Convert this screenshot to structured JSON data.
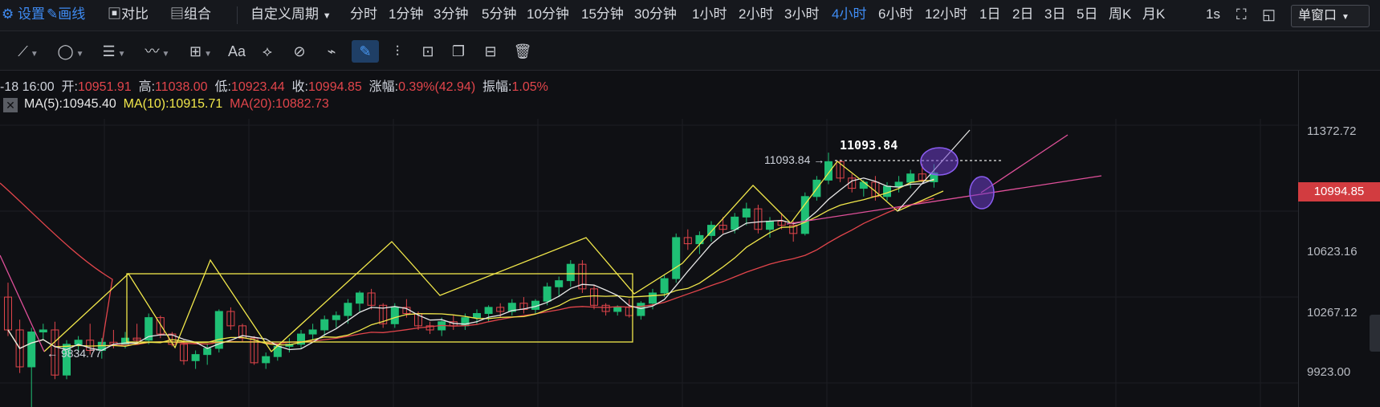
{
  "topbar": {
    "settings_label": "设置",
    "draw_label": "画线",
    "compare_label": "对比",
    "combo_label": "组合",
    "custom_period_label": "自定义周期",
    "periods": [
      "分时",
      "1分钟",
      "3分钟",
      "5分钟",
      "10分钟",
      "15分钟",
      "30分钟",
      "1小时",
      "2小时",
      "3小时",
      "4小时",
      "6小时",
      "12小时",
      "1日",
      "2日",
      "3日",
      "5日",
      "周K",
      "月K"
    ],
    "active_period": "4小时",
    "refresh_label": "1s",
    "window_mode_label": "单窗口"
  },
  "drawing_tools": [
    "line-tool-icon",
    "ellipse-tool-icon",
    "parallel-tool-icon",
    "wave-tool-icon",
    "measure-tool-icon",
    "text-tool-icon",
    "fib-tool-icon",
    "magnet-tool-icon",
    "ruler-tool-icon",
    "brush-tool-icon",
    "pattern-tool-icon",
    "lock-tool-icon",
    "copy-tool-icon",
    "hide-tool-icon",
    "delete-tool-icon"
  ],
  "text_tool_label": "Aa",
  "ohlc": {
    "time": "-18 16:00",
    "open_label": "开:",
    "open": "10951.91",
    "high_label": "高:",
    "high": "11038.00",
    "low_label": "低:",
    "low": "10923.44",
    "close_label": "收:",
    "close": "10994.85",
    "change_label": "涨幅:",
    "change": "0.39%(42.94)",
    "amplitude_label": "振幅:",
    "amplitude": "1.05%"
  },
  "ma": {
    "ma5": "MA(5):10945.40",
    "ma10": "MA(10):10915.71",
    "ma20": "MA(20):10882.73"
  },
  "colors": {
    "up": "#1fbf75",
    "down": "#e2454b",
    "ma5": "#e8e8e8",
    "ma10": "#f2e84b",
    "ma20": "#e2454b",
    "accent": "#3f8cf4"
  },
  "chart_data": {
    "type": "candlestick",
    "price_axis_ticks": [
      "11372.72",
      "10623.16",
      "10267.12",
      "9923.00"
    ],
    "current_price": "10994.85",
    "ylim": [
      9870,
      11470
    ],
    "annotations": {
      "high_marker": "11093.84",
      "high_marker_big": "11093.84",
      "low_marker": "9834.77"
    },
    "candles": [
      [
        10390,
        10460,
        10200,
        10230
      ],
      [
        10230,
        10280,
        10020,
        10050
      ],
      [
        10050,
        10240,
        9834.77,
        10220
      ],
      [
        10220,
        10260,
        10180,
        10230
      ],
      [
        10230,
        10270,
        9990,
        10010
      ],
      [
        10010,
        10180,
        9990,
        10160
      ],
      [
        10160,
        10200,
        10120,
        10180
      ],
      [
        10180,
        10260,
        10110,
        10130
      ],
      [
        10130,
        10190,
        10090,
        10170
      ],
      [
        10170,
        10230,
        10140,
        10160
      ],
      [
        10160,
        10220,
        10140,
        10190
      ],
      [
        10190,
        10260,
        10160,
        10180
      ],
      [
        10180,
        10310,
        10160,
        10290
      ],
      [
        10290,
        10300,
        10190,
        10210
      ],
      [
        10210,
        10220,
        10150,
        10160
      ],
      [
        10160,
        10180,
        10060,
        10080
      ],
      [
        10080,
        10130,
        10040,
        10110
      ],
      [
        10110,
        10160,
        10060,
        10140
      ],
      [
        10140,
        10330,
        10120,
        10320
      ],
      [
        10320,
        10340,
        10230,
        10250
      ],
      [
        10250,
        10260,
        10170,
        10190
      ],
      [
        10190,
        10200,
        10060,
        10070
      ],
      [
        10070,
        10120,
        10040,
        10100
      ],
      [
        10100,
        10160,
        10080,
        10150
      ],
      [
        10150,
        10190,
        10120,
        10160
      ],
      [
        10160,
        10230,
        10140,
        10210
      ],
      [
        10210,
        10260,
        10180,
        10230
      ],
      [
        10230,
        10300,
        10200,
        10280
      ],
      [
        10280,
        10320,
        10240,
        10300
      ],
      [
        10300,
        10380,
        10260,
        10360
      ],
      [
        10360,
        10420,
        10320,
        10410
      ],
      [
        10410,
        10430,
        10330,
        10350
      ],
      [
        10350,
        10360,
        10240,
        10260
      ],
      [
        10260,
        10360,
        10240,
        10340
      ],
      [
        10340,
        10380,
        10290,
        10310
      ],
      [
        10310,
        10320,
        10230,
        10250
      ],
      [
        10250,
        10270,
        10210,
        10230
      ],
      [
        10230,
        10290,
        10200,
        10270
      ],
      [
        10270,
        10300,
        10230,
        10250
      ],
      [
        10250,
        10310,
        10230,
        10290
      ],
      [
        10290,
        10330,
        10260,
        10310
      ],
      [
        10310,
        10350,
        10270,
        10340
      ],
      [
        10340,
        10360,
        10290,
        10320
      ],
      [
        10320,
        10380,
        10300,
        10360
      ],
      [
        10360,
        10390,
        10310,
        10330
      ],
      [
        10330,
        10380,
        10310,
        10370
      ],
      [
        10370,
        10460,
        10350,
        10440
      ],
      [
        10440,
        10490,
        10390,
        10470
      ],
      [
        10470,
        10570,
        10440,
        10550
      ],
      [
        10550,
        10570,
        10410,
        10430
      ],
      [
        10430,
        10450,
        10330,
        10350
      ],
      [
        10350,
        10360,
        10300,
        10320
      ],
      [
        10320,
        10350,
        10300,
        10340
      ],
      [
        10340,
        10380,
        10290,
        10300
      ],
      [
        10300,
        10370,
        10280,
        10360
      ],
      [
        10360,
        10430,
        10330,
        10410
      ],
      [
        10410,
        10500,
        10390,
        10480
      ],
      [
        10480,
        10700,
        10460,
        10680
      ],
      [
        10680,
        10720,
        10620,
        10650
      ],
      [
        10650,
        10710,
        10600,
        10690
      ],
      [
        10690,
        10760,
        10660,
        10740
      ],
      [
        10740,
        10780,
        10700,
        10720
      ],
      [
        10720,
        10800,
        10700,
        10780
      ],
      [
        10780,
        10850,
        10740,
        10820
      ],
      [
        10820,
        10840,
        10700,
        10720
      ],
      [
        10720,
        10780,
        10680,
        10760
      ],
      [
        10760,
        10800,
        10720,
        10740
      ],
      [
        10740,
        10760,
        10660,
        10700
      ],
      [
        10700,
        10900,
        10690,
        10880
      ],
      [
        10880,
        10980,
        10860,
        10960
      ],
      [
        10960,
        11093.84,
        10940,
        11050
      ],
      [
        11050,
        11060,
        10950,
        10970
      ],
      [
        10970,
        10990,
        10900,
        10920
      ],
      [
        10920,
        10960,
        10880,
        10950
      ],
      [
        10950,
        10980,
        10860,
        10880
      ],
      [
        10880,
        10950,
        10860,
        10930
      ],
      [
        10930,
        10980,
        10900,
        10950
      ],
      [
        10950,
        11010,
        10920,
        10990
      ],
      [
        10990,
        11040,
        10950,
        10960
      ],
      [
        10951.91,
        11038.0,
        10923.44,
        10994.85
      ]
    ]
  }
}
